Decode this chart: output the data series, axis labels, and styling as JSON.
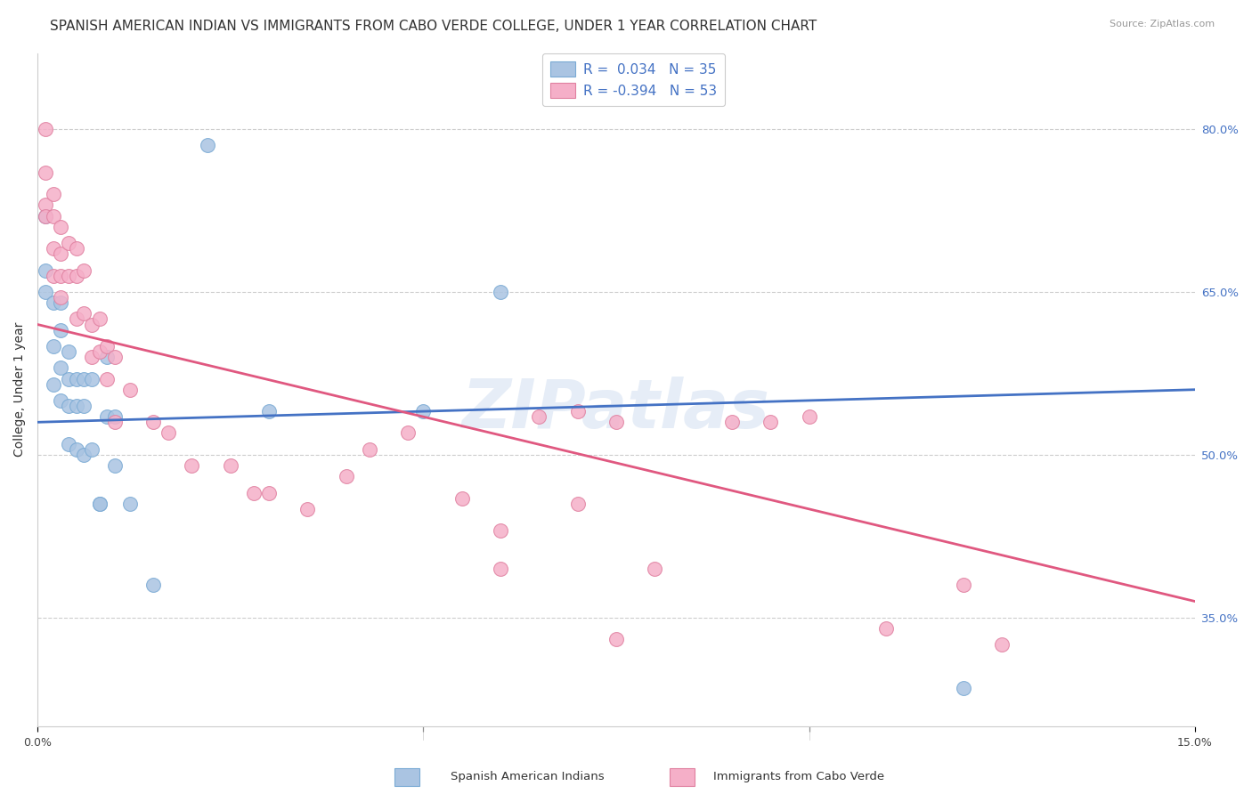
{
  "title": "SPANISH AMERICAN INDIAN VS IMMIGRANTS FROM CABO VERDE COLLEGE, UNDER 1 YEAR CORRELATION CHART",
  "source": "Source: ZipAtlas.com",
  "ylabel": "College, Under 1 year",
  "ylabel_right_labels": [
    "35.0%",
    "50.0%",
    "65.0%",
    "80.0%"
  ],
  "ylabel_right_values": [
    0.35,
    0.5,
    0.65,
    0.8
  ],
  "xmin": 0.0,
  "xmax": 0.15,
  "ymin": 0.25,
  "ymax": 0.87,
  "label1": "Spanish American Indians",
  "label2": "Immigrants from Cabo Verde",
  "color1": "#aac4e2",
  "color2": "#f5afc8",
  "line_color1": "#4472c4",
  "line_color2": "#e05880",
  "blue_line_y0": 0.53,
  "blue_line_y1": 0.56,
  "pink_line_y0": 0.62,
  "pink_line_y1": 0.365,
  "blue_x": [
    0.001,
    0.001,
    0.001,
    0.002,
    0.002,
    0.002,
    0.003,
    0.003,
    0.003,
    0.003,
    0.004,
    0.004,
    0.004,
    0.004,
    0.005,
    0.005,
    0.005,
    0.006,
    0.006,
    0.006,
    0.007,
    0.007,
    0.008,
    0.008,
    0.009,
    0.009,
    0.01,
    0.01,
    0.012,
    0.015,
    0.022,
    0.03,
    0.05,
    0.06,
    0.12
  ],
  "blue_y": [
    0.67,
    0.72,
    0.65,
    0.64,
    0.6,
    0.565,
    0.64,
    0.615,
    0.58,
    0.55,
    0.595,
    0.57,
    0.545,
    0.51,
    0.57,
    0.545,
    0.505,
    0.57,
    0.545,
    0.5,
    0.57,
    0.505,
    0.455,
    0.455,
    0.59,
    0.535,
    0.535,
    0.49,
    0.455,
    0.38,
    0.785,
    0.54,
    0.54,
    0.65,
    0.285
  ],
  "pink_x": [
    0.001,
    0.001,
    0.001,
    0.001,
    0.002,
    0.002,
    0.002,
    0.002,
    0.003,
    0.003,
    0.003,
    0.003,
    0.004,
    0.004,
    0.005,
    0.005,
    0.005,
    0.006,
    0.006,
    0.007,
    0.007,
    0.008,
    0.008,
    0.009,
    0.009,
    0.01,
    0.01,
    0.012,
    0.015,
    0.017,
    0.02,
    0.025,
    0.028,
    0.03,
    0.035,
    0.04,
    0.043,
    0.048,
    0.055,
    0.06,
    0.065,
    0.07,
    0.075,
    0.08,
    0.09,
    0.095,
    0.1,
    0.11,
    0.12,
    0.125,
    0.06,
    0.07,
    0.075
  ],
  "pink_y": [
    0.8,
    0.76,
    0.73,
    0.72,
    0.74,
    0.72,
    0.69,
    0.665,
    0.71,
    0.685,
    0.665,
    0.645,
    0.695,
    0.665,
    0.69,
    0.665,
    0.625,
    0.67,
    0.63,
    0.62,
    0.59,
    0.625,
    0.595,
    0.6,
    0.57,
    0.59,
    0.53,
    0.56,
    0.53,
    0.52,
    0.49,
    0.49,
    0.465,
    0.465,
    0.45,
    0.48,
    0.505,
    0.52,
    0.46,
    0.43,
    0.535,
    0.54,
    0.53,
    0.395,
    0.53,
    0.53,
    0.535,
    0.34,
    0.38,
    0.325,
    0.395,
    0.455,
    0.33
  ],
  "watermark": "ZIPatlas",
  "background_color": "#ffffff",
  "grid_color": "#c8c8c8",
  "title_fontsize": 11,
  "axis_label_fontsize": 10,
  "tick_fontsize": 9,
  "legend_r1": "R =  0.034",
  "legend_n1": "N = 35",
  "legend_r2": "R = -0.394",
  "legend_n2": "N = 53"
}
